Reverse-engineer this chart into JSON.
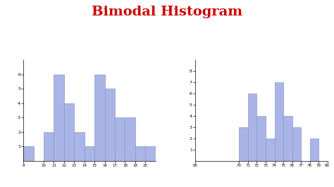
{
  "title": "Bimodal Histogram",
  "title_color": "#cc0000",
  "title_fontsize": 14,
  "title_fontweight": "bold",
  "bar_color": "#aab4e6",
  "bar_edgecolor": "#8899cc",
  "background_color": "#ffffff",
  "hist1": {
    "values": [
      1,
      2,
      6,
      4,
      2,
      1,
      6,
      5,
      3,
      3,
      1,
      1
    ],
    "bin_starts": [
      8,
      10,
      11,
      12,
      13,
      14,
      15,
      16,
      17,
      18,
      19,
      20
    ],
    "bin_width": 1,
    "xlim": [
      8,
      21
    ],
    "ylim": [
      0,
      7
    ],
    "yticks": [
      1,
      2,
      3,
      4,
      5,
      6
    ],
    "xticks": [
      8,
      10,
      11,
      12,
      13,
      14,
      15,
      16,
      17,
      18,
      19,
      20
    ]
  },
  "hist2": {
    "values": [
      3,
      6,
      4,
      2,
      7,
      4,
      3,
      2
    ],
    "bin_starts": [
      70,
      71,
      72,
      73,
      74,
      75,
      76,
      78
    ],
    "bin_width": 1,
    "xlim": [
      65,
      80
    ],
    "ylim": [
      0,
      9
    ],
    "yticks": [
      1,
      2,
      3,
      4,
      5,
      6,
      7,
      8
    ],
    "xticks": [
      65,
      70,
      71,
      72,
      73,
      74,
      75,
      76,
      77,
      78,
      79,
      80
    ]
  }
}
